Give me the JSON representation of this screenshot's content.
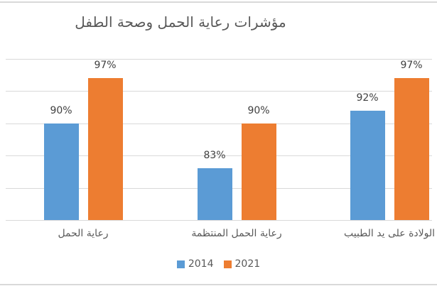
{
  "chart_data": {
    "type": "bar",
    "title": "مؤشرات رعاية الحمل وصحة الطفل",
    "categories": [
      "رعاية الحمل",
      "رعاية الحمل المنتظمة",
      "الولادة على يد الطبيب"
    ],
    "series": [
      {
        "name": "2014",
        "color": "#5B9BD5",
        "values": [
          90,
          83,
          92
        ]
      },
      {
        "name": "2021",
        "color": "#ED7D31",
        "values": [
          97,
          90,
          97
        ]
      }
    ],
    "value_suffix": "%",
    "xlabel": "",
    "ylabel": "",
    "ylim": [
      75,
      100
    ],
    "gridline_step": 5,
    "grid": true,
    "legend_position": "bottom",
    "data_labels": true
  },
  "style": {
    "background": "#FFFFFF",
    "gridline_color": "#D9D9D9",
    "border_color": "#D9D9D9",
    "title_color": "#595959",
    "data_label_color": "#404040",
    "axis_text_color": "#595959",
    "legend_text_color": "#595959"
  }
}
